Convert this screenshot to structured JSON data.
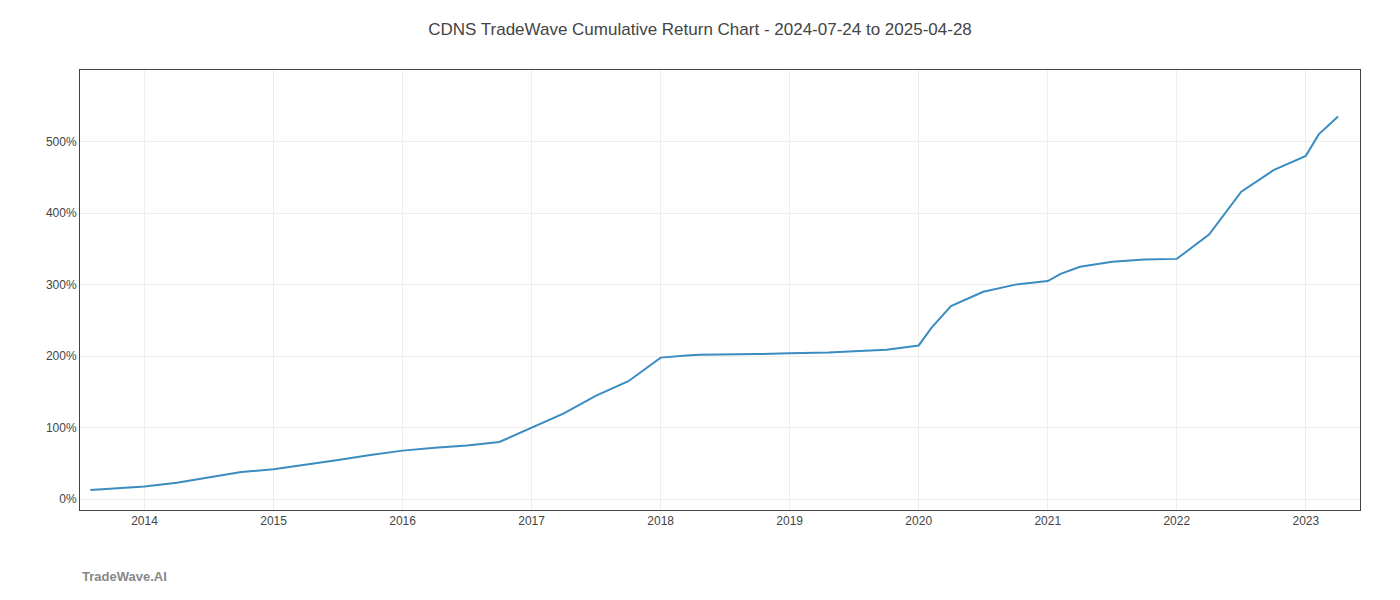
{
  "chart_data": {
    "type": "line",
    "title": "CDNS TradeWave Cumulative Return Chart - 2024-07-24 to 2025-04-28",
    "annotations": [
      "TradeWave.AI"
    ],
    "x": [
      2013.58,
      2014.0,
      2014.25,
      2014.5,
      2014.75,
      2015.0,
      2015.25,
      2015.5,
      2015.75,
      2016.0,
      2016.25,
      2016.5,
      2016.75,
      2017.0,
      2017.25,
      2017.5,
      2017.75,
      2018.0,
      2018.1,
      2018.2,
      2018.3,
      2018.5,
      2018.75,
      2019.0,
      2019.1,
      2019.2,
      2019.3,
      2019.5,
      2019.75,
      2020.0,
      2020.1,
      2020.25,
      2020.5,
      2020.75,
      2021.0,
      2021.1,
      2021.25,
      2021.5,
      2021.75,
      2022.0,
      2022.25,
      2022.5,
      2022.75,
      2023.0,
      2023.1,
      2023.25
    ],
    "values": [
      13,
      18,
      23,
      30,
      38,
      42,
      48,
      55,
      62,
      68,
      72,
      75,
      80,
      100,
      120,
      145,
      165,
      198,
      200,
      201,
      202,
      202,
      203,
      204,
      204,
      205,
      205,
      207,
      209,
      215,
      240,
      270,
      290,
      300,
      305,
      315,
      325,
      332,
      335,
      336,
      370,
      430,
      460,
      480,
      510,
      535
    ],
    "color": "#3a8cc1",
    "xlim": [
      2013.5,
      2023.42
    ],
    "ylim": [
      -15,
      600
    ],
    "xticks": [
      2014,
      2015,
      2016,
      2017,
      2018,
      2019,
      2020,
      2021,
      2022,
      2023
    ],
    "yticks": [
      {
        "value": 0,
        "label": "0%"
      },
      {
        "value": 100,
        "label": "100%"
      },
      {
        "value": 200,
        "label": "200%"
      },
      {
        "value": 300,
        "label": "300%"
      },
      {
        "value": 400,
        "label": "400%"
      },
      {
        "value": 500,
        "label": "500%"
      }
    ],
    "grid": true
  }
}
